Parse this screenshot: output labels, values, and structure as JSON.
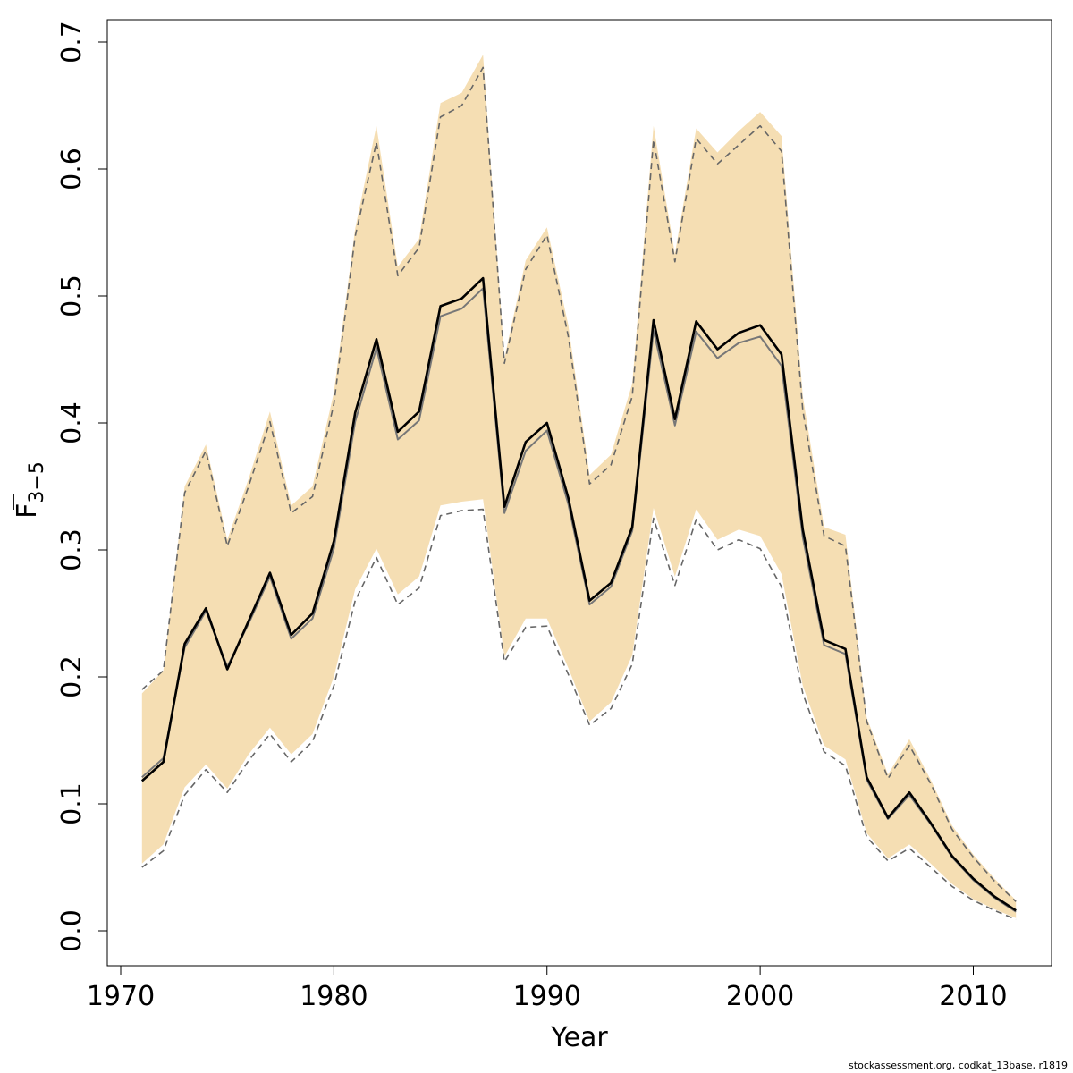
{
  "chart_data": {
    "type": "line",
    "xlabel": "Year",
    "ylabel": {
      "main": "F",
      "subscript": "3−5"
    },
    "xlim": [
      1970,
      2013
    ],
    "ylim": [
      0,
      0.7
    ],
    "xticks": [
      "1970",
      "1980",
      "1990",
      "2000",
      "2010"
    ],
    "yticks": [
      "0.0",
      "0.1",
      "0.2",
      "0.3",
      "0.4",
      "0.5",
      "0.6",
      "0.7"
    ],
    "grid": false,
    "legend": "none",
    "colors": {
      "band": "#f5deb3",
      "estimate": "#000000",
      "alt_estimate": "#777777",
      "bounds": "#666666"
    },
    "x": [
      1971,
      1972,
      1973,
      1974,
      1975,
      1976,
      1977,
      1978,
      1979,
      1980,
      1981,
      1982,
      1983,
      1984,
      1985,
      1986,
      1987,
      1988,
      1989,
      1990,
      1991,
      1992,
      1993,
      1994,
      1995,
      1996,
      1997,
      1998,
      1999,
      2000,
      2001,
      2002,
      2003,
      2004,
      2005,
      2006,
      2007,
      2008,
      2009,
      2010,
      2011,
      2012
    ],
    "series": [
      {
        "role": "estimate",
        "values": [
          0.118,
          0.133,
          0.226,
          0.254,
          0.206,
          0.244,
          0.282,
          0.233,
          0.25,
          0.307,
          0.408,
          0.466,
          0.393,
          0.409,
          0.492,
          0.498,
          0.514,
          0.334,
          0.385,
          0.4,
          0.341,
          0.26,
          0.274,
          0.318,
          0.481,
          0.403,
          0.48,
          0.458,
          0.471,
          0.477,
          0.454,
          0.316,
          0.229,
          0.222,
          0.121,
          0.089,
          0.109,
          0.085,
          0.059,
          0.041,
          0.027,
          0.016
        ]
      },
      {
        "role": "alt_estimate",
        "values": [
          0.121,
          0.136,
          0.223,
          0.252,
          0.208,
          0.242,
          0.279,
          0.23,
          0.246,
          0.301,
          0.401,
          0.459,
          0.387,
          0.402,
          0.484,
          0.49,
          0.506,
          0.329,
          0.378,
          0.394,
          0.336,
          0.257,
          0.271,
          0.315,
          0.473,
          0.398,
          0.472,
          0.451,
          0.463,
          0.468,
          0.445,
          0.31,
          0.225,
          0.218,
          0.119,
          0.088,
          0.107,
          0.084,
          0.058,
          0.04,
          0.026,
          0.015
        ]
      },
      {
        "role": "upper_bound",
        "values": [
          0.19,
          0.205,
          0.345,
          0.378,
          0.303,
          0.35,
          0.401,
          0.329,
          0.342,
          0.415,
          0.547,
          0.621,
          0.516,
          0.538,
          0.641,
          0.65,
          0.68,
          0.447,
          0.521,
          0.548,
          0.468,
          0.352,
          0.367,
          0.421,
          0.623,
          0.527,
          0.624,
          0.604,
          0.619,
          0.634,
          0.614,
          0.41,
          0.311,
          0.303,
          0.165,
          0.12,
          0.146,
          0.116,
          0.08,
          0.058,
          0.039,
          0.023
        ]
      },
      {
        "role": "lower_bound",
        "values": [
          0.05,
          0.063,
          0.107,
          0.127,
          0.109,
          0.134,
          0.155,
          0.133,
          0.149,
          0.193,
          0.26,
          0.294,
          0.257,
          0.27,
          0.327,
          0.331,
          0.332,
          0.212,
          0.239,
          0.24,
          0.202,
          0.162,
          0.175,
          0.21,
          0.325,
          0.272,
          0.324,
          0.3,
          0.308,
          0.301,
          0.271,
          0.187,
          0.141,
          0.13,
          0.074,
          0.055,
          0.065,
          0.05,
          0.035,
          0.024,
          0.016,
          0.009
        ]
      }
    ],
    "band": {
      "upper": [
        0.187,
        0.205,
        0.35,
        0.383,
        0.308,
        0.356,
        0.409,
        0.335,
        0.35,
        0.424,
        0.553,
        0.634,
        0.523,
        0.545,
        0.652,
        0.66,
        0.69,
        0.451,
        0.528,
        0.554,
        0.477,
        0.359,
        0.375,
        0.431,
        0.634,
        0.533,
        0.632,
        0.613,
        0.63,
        0.645,
        0.626,
        0.421,
        0.318,
        0.312,
        0.168,
        0.123,
        0.151,
        0.119,
        0.083,
        0.06,
        0.041,
        0.024
      ],
      "lower": [
        0.053,
        0.068,
        0.113,
        0.131,
        0.112,
        0.139,
        0.16,
        0.139,
        0.155,
        0.2,
        0.269,
        0.301,
        0.265,
        0.279,
        0.335,
        0.338,
        0.34,
        0.216,
        0.246,
        0.246,
        0.207,
        0.165,
        0.18,
        0.217,
        0.333,
        0.279,
        0.332,
        0.308,
        0.316,
        0.311,
        0.281,
        0.193,
        0.146,
        0.135,
        0.077,
        0.057,
        0.068,
        0.053,
        0.037,
        0.025,
        0.017,
        0.01
      ]
    }
  },
  "footer": "stockassessment.org, codkat_13base, r1819"
}
